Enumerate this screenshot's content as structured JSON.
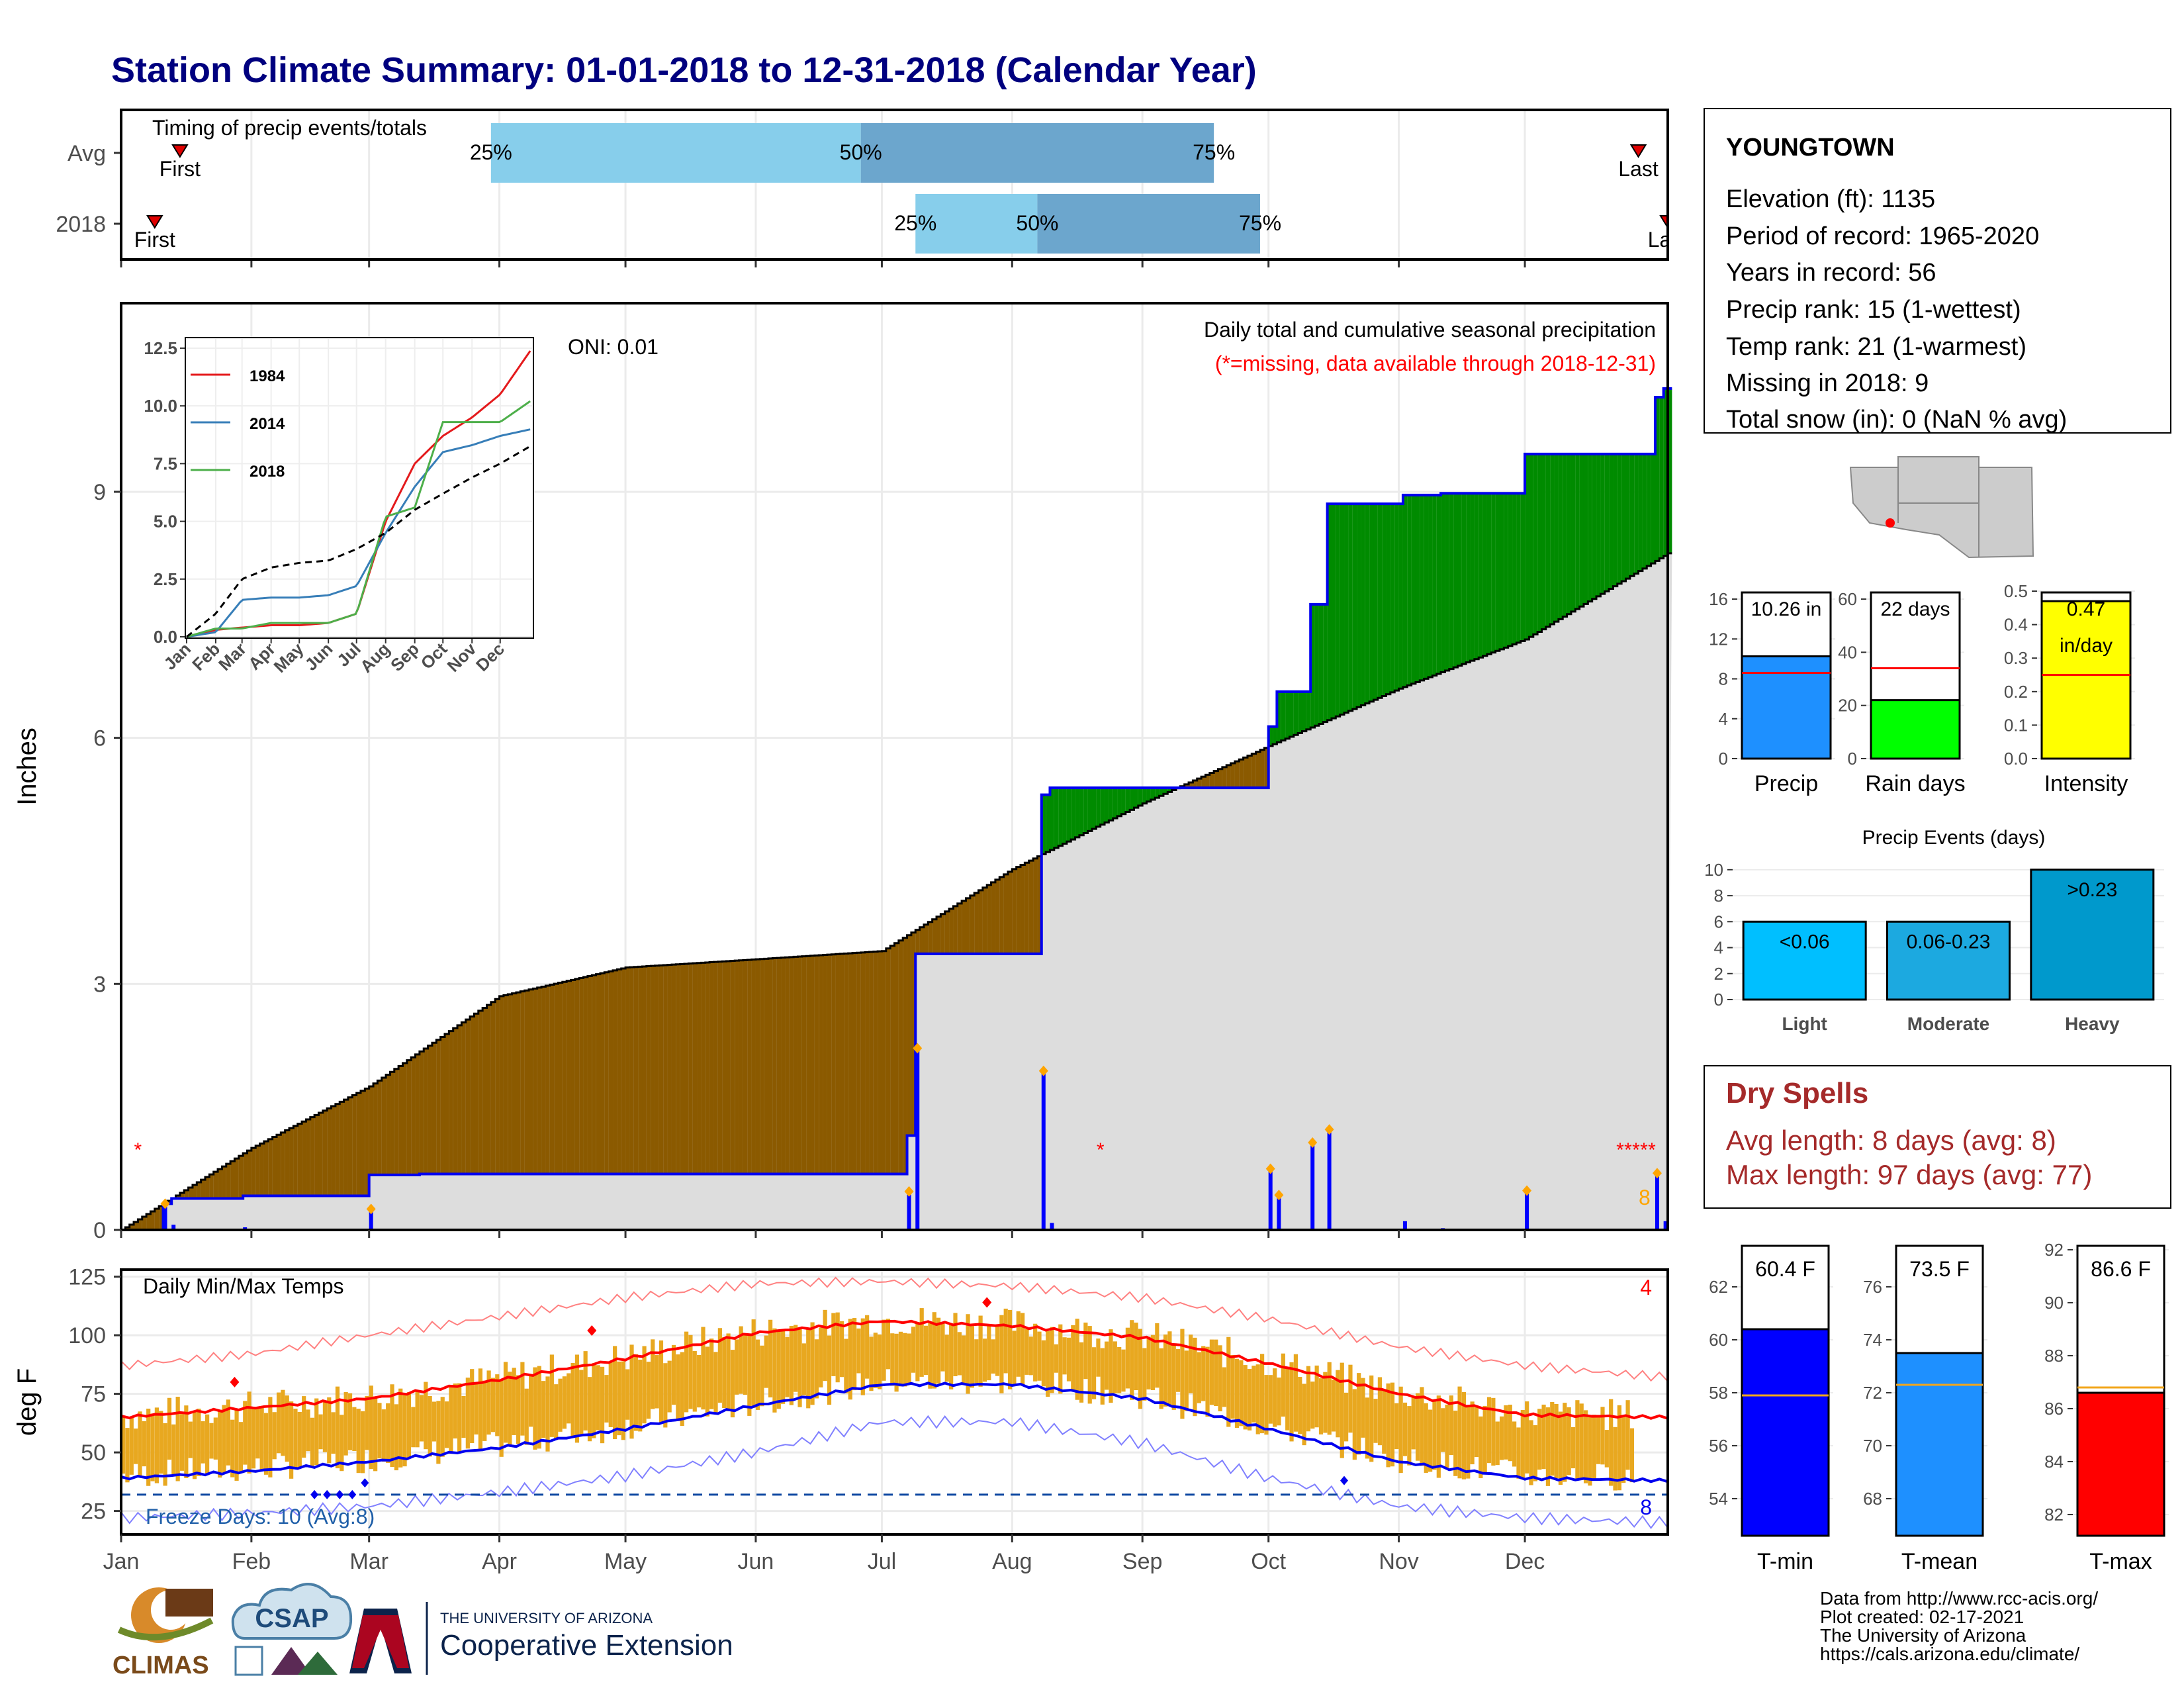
{
  "title": "Station Climate Summary: 01-01-2018 to 12-31-2018 (Calendar Year)",
  "colors": {
    "title": "#00007F",
    "q_light": "#87CEEB",
    "q_dark": "#6CA6CD",
    "deficit_brown": "#8B5A00",
    "surplus_green": "#008B00",
    "normal_grey": "#DDDDDD",
    "cum_line": "#0000EE",
    "temp_bar": "#E8A820",
    "tmax_normal": "#FF0000",
    "tmin_normal": "#0000EE",
    "dry_red": "#A52A2A"
  },
  "timing": {
    "label": "Timing of precip events/totals",
    "rows": [
      {
        "name": "Avg",
        "first": "First",
        "last": "Last",
        "q25": "25%",
        "q50": "50%",
        "q75": "75%",
        "first_day": 15,
        "last_day": 362,
        "q25_day": 89,
        "q50_day": 177,
        "q75_day": 261
      },
      {
        "name": "2018",
        "first": "First",
        "last": "Last",
        "q25": "25%",
        "q50": "50%",
        "q75": "75%",
        "first_day": 9,
        "last_day": 369,
        "q25_day": 190,
        "q50_day": 219,
        "q75_day": 272
      }
    ]
  },
  "precip_panel": {
    "ylabel": "Inches",
    "oni": "ONI: 0.01",
    "label1": "Daily total and cumulative seasonal precipitation",
    "label2": "(*=missing, data available through 2018-12-31)",
    "yticks": [
      "0",
      "3",
      "6",
      "9"
    ],
    "ytick_values": [
      0,
      3,
      6,
      9
    ],
    "ymax": 11.3,
    "right_count": "8"
  },
  "inset": {
    "yticks": [
      "0.0",
      "2.5",
      "5.0",
      "7.5",
      "10.0",
      "12.5"
    ],
    "ytick_values": [
      0,
      2.5,
      5,
      7.5,
      10,
      12.5
    ],
    "months": [
      "Jan",
      "Feb",
      "Mar",
      "Apr",
      "May",
      "Jun",
      "Jul",
      "Aug",
      "Sep",
      "Oct",
      "Nov",
      "Dec"
    ],
    "legend": [
      {
        "name": "1984",
        "color": "#E41A1C"
      },
      {
        "name": "2014",
        "color": "#377EB8"
      },
      {
        "name": "2018",
        "color": "#4DAF4A"
      }
    ]
  },
  "temp_panel": {
    "ylabel": "deg F",
    "label": "Daily Min/Max Temps",
    "freeze": "Freeze Days: 10 (Avg:8)",
    "top_count": "4",
    "bottom_count": "8",
    "yticks": [
      "25",
      "50",
      "75",
      "100",
      "125"
    ],
    "ytick_values": [
      25,
      50,
      75,
      100,
      125
    ]
  },
  "months_axis": [
    "Jan",
    "Feb",
    "Mar",
    "Apr",
    "May",
    "Jun",
    "Jul",
    "Aug",
    "Sep",
    "Oct",
    "Nov",
    "Dec"
  ],
  "station": {
    "name": "YOUNGTOWN",
    "lines": [
      "Elevation (ft): 1135",
      "Period of record: 1965-2020",
      "Years in record: 56",
      "Precip rank: 15 (1-wettest)",
      "Temp rank: 21 (1-warmest)",
      "Missing in 2018: 9",
      "Total snow (in): 0 (NaN % avg)"
    ]
  },
  "minicharts": [
    {
      "label": "Precip",
      "value_text": "10.26 in",
      "value": 10.26,
      "avg": 8.6,
      "color": "#1E90FF",
      "ticks": [
        "0",
        "4",
        "8",
        "12",
        "16"
      ],
      "tick_values": [
        0,
        4,
        8,
        12,
        16
      ],
      "ymax": 16.8
    },
    {
      "label": "Rain days",
      "value_text": "22 days",
      "value": 22,
      "avg": 34,
      "color": "#00FF00",
      "ticks": [
        "0",
        "20",
        "40",
        "60"
      ],
      "tick_values": [
        0,
        20,
        40,
        60
      ],
      "ymax": 63
    },
    {
      "label": "Intensity",
      "value_text": "0.47",
      "value_text2": "in/day",
      "value": 0.47,
      "avg": 0.25,
      "color": "#FFFF00",
      "ticks": [
        "0.0",
        "0.1",
        "0.2",
        "0.3",
        "0.4",
        "0.5"
      ],
      "tick_values": [
        0,
        0.1,
        0.2,
        0.3,
        0.4,
        0.5
      ],
      "ymax": 0.5
    }
  ],
  "events": {
    "title": "Precip Events (days)",
    "ticks": [
      "0",
      "2",
      "4",
      "6",
      "8",
      "10"
    ],
    "tick_values": [
      0,
      2,
      4,
      6,
      8,
      10
    ],
    "bars": [
      {
        "name": "Light",
        "label": "<0.06",
        "value": 6,
        "color": "#00BFFF"
      },
      {
        "name": "Moderate",
        "label": "0.06-0.23",
        "value": 6,
        "color": "#1CA9E0"
      },
      {
        "name": "Heavy",
        "label": ">0.23",
        "value": 10,
        "color": "#0099CC"
      }
    ]
  },
  "dry": {
    "title": "Dry Spells",
    "line1": "Avg length: 8 days (avg: 8)",
    "line2": "Max length: 97 days (avg: 77)"
  },
  "temps_mini": [
    {
      "label": "T-min",
      "value_text": "60.4 F",
      "value": 60.4,
      "avg": 57.9,
      "color": "#0000FF",
      "ticks": [
        "54",
        "56",
        "58",
        "60",
        "62"
      ],
      "tick_values": [
        54,
        56,
        58,
        60,
        62
      ],
      "ymin": 52.6,
      "ymax": 63.6
    },
    {
      "label": "T-mean",
      "value_text": "73.5 F",
      "value": 73.5,
      "avg": 72.3,
      "color": "#1E90FF",
      "ticks": [
        "68",
        "70",
        "72",
        "74",
        "76"
      ],
      "tick_values": [
        68,
        70,
        72,
        74,
        76
      ],
      "ymin": 66.6,
      "ymax": 77.6
    },
    {
      "label": "T-max",
      "value_text": "86.6 F",
      "value": 86.6,
      "avg": 86.8,
      "color": "#FF0000",
      "ticks": [
        "82",
        "84",
        "86",
        "88",
        "90",
        "92"
      ],
      "tick_values": [
        82,
        84,
        86,
        88,
        90,
        92
      ],
      "ymin": 81.2,
      "ymax": 92.2
    }
  ],
  "footer": {
    "lines": [
      "Data from http://www.rcc-acis.org/",
      "Plot created: 02-17-2021",
      "The University of Arizona",
      "https://cals.arizona.edu/climate/"
    ],
    "climas": "CLIMAS",
    "csap": "CSAP",
    "ua_top": "THE UNIVERSITY OF ARIZONA",
    "ua_bottom": "Cooperative Extension"
  },
  "chart_data": [
    {
      "type": "bar",
      "title": "Timing of precip events/totals",
      "categories": [
        "Avg",
        "2018"
      ],
      "series": [
        {
          "name": "25%",
          "values": [
            89,
            190
          ]
        },
        {
          "name": "50%",
          "values": [
            177,
            219
          ]
        },
        {
          "name": "75%",
          "values": [
            261,
            272
          ]
        }
      ]
    },
    {
      "type": "area",
      "title": "Daily total and cumulative seasonal precipitation",
      "xlabel": "",
      "ylabel": "Inches",
      "ylim": [
        0,
        11.3
      ],
      "x": [
        "Jan",
        "Feb",
        "Mar",
        "Apr",
        "May",
        "Jun",
        "Jul",
        "Aug",
        "Sep",
        "Oct",
        "Nov",
        "Dec",
        "Dec-31"
      ],
      "series": [
        {
          "name": "normal cumulative",
          "values": [
            0,
            1.0,
            1.75,
            2.85,
            3.2,
            3.3,
            3.4,
            4.4,
            5.2,
            5.9,
            6.6,
            7.2,
            8.25
          ]
        },
        {
          "name": "2018 cumulative",
          "values": [
            0,
            0.36,
            0.36,
            0.6,
            0.6,
            0.6,
            0.6,
            3.13,
            5.24,
            6.0,
            9.3,
            9.3,
            10.26
          ]
        }
      ]
    },
    {
      "type": "line",
      "xlabel": "",
      "ylabel": "",
      "ylim": [
        0,
        12.5
      ],
      "x": [
        "Jan",
        "Feb",
        "Mar",
        "Apr",
        "May",
        "Jun",
        "Jul",
        "Aug",
        "Sep",
        "Oct",
        "Nov",
        "Dec",
        "Dec-31"
      ],
      "series": [
        {
          "name": "1984",
          "values": [
            0,
            0.3,
            0.4,
            0.5,
            0.5,
            0.6,
            1.0,
            5.0,
            7.5,
            8.7,
            9.5,
            10.5,
            12.5
          ]
        },
        {
          "name": "2014",
          "values": [
            0,
            0.2,
            1.6,
            1.7,
            1.7,
            1.8,
            2.2,
            4.5,
            6.5,
            8.0,
            8.3,
            8.7,
            9.0
          ]
        },
        {
          "name": "2018",
          "values": [
            0,
            0.36,
            0.36,
            0.6,
            0.6,
            0.6,
            1.0,
            5.2,
            5.6,
            9.3,
            9.3,
            9.3,
            10.26
          ]
        },
        {
          "name": "average",
          "values": [
            0,
            1.0,
            2.5,
            3.0,
            3.2,
            3.3,
            3.8,
            4.5,
            5.5,
            6.2,
            6.9,
            7.5,
            8.3
          ]
        }
      ]
    },
    {
      "type": "line",
      "title": "Daily Min/Max Temps",
      "xlabel": "",
      "ylabel": "deg F",
      "ylim": [
        15,
        128
      ],
      "x": [
        "Jan",
        "Feb",
        "Mar",
        "Apr",
        "May",
        "Jun",
        "Jul",
        "Aug",
        "Sep",
        "Oct",
        "Nov",
        "Dec",
        "Dec-31"
      ],
      "series": [
        {
          "name": "normal max",
          "values": [
            65,
            69,
            73,
            81,
            90,
            101,
            106,
            104,
            99,
            88,
            75,
            66,
            65
          ]
        },
        {
          "name": "normal min",
          "values": [
            39,
            42,
            46,
            52,
            60,
            70,
            79,
            79,
            73,
            60,
            46,
            39,
            38
          ]
        },
        {
          "name": "record max",
          "values": [
            87,
            92,
            100,
            108,
            116,
            122,
            123,
            121,
            116,
            107,
            95,
            87,
            82
          ]
        },
        {
          "name": "record min",
          "values": [
            22,
            24,
            27,
            33,
            40,
            50,
            63,
            63,
            54,
            39,
            27,
            22,
            20
          ]
        }
      ]
    },
    {
      "type": "bar",
      "categories": [
        "Precip",
        "Rain days",
        "Intensity"
      ],
      "values": [
        10.26,
        22,
        0.47
      ]
    },
    {
      "type": "bar",
      "title": "Precip Events (days)",
      "categories": [
        "Light",
        "Moderate",
        "Heavy"
      ],
      "values": [
        6,
        6,
        10
      ]
    },
    {
      "type": "bar",
      "categories": [
        "T-min",
        "T-mean",
        "T-max"
      ],
      "values": [
        60.4,
        73.5,
        86.6
      ]
    }
  ]
}
